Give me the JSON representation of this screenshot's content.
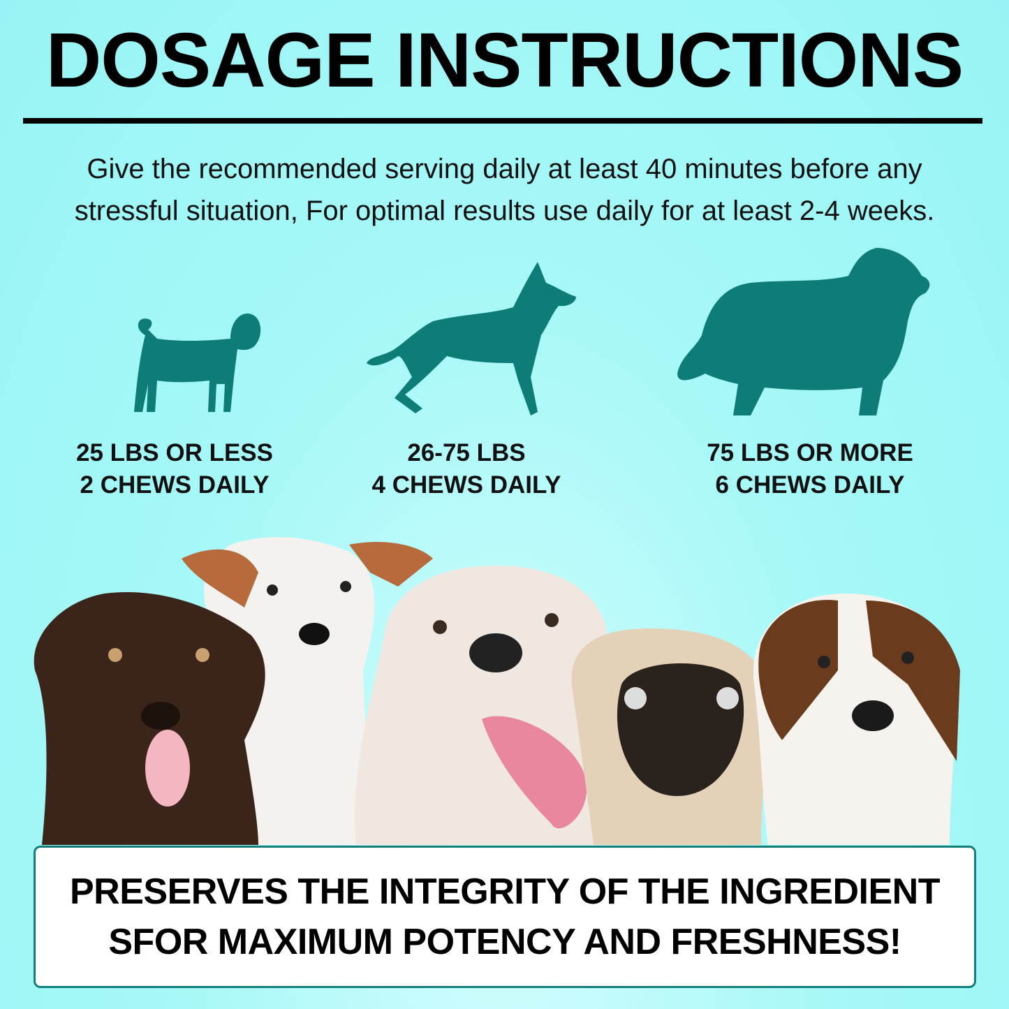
{
  "title": "DOSAGE INSTRUCTIONS",
  "intro": {
    "line1": "Give the recommended serving daily at least 40 minutes before any",
    "line2": "stressful situation, For optimal results use daily for at least 2-4 weeks."
  },
  "colors": {
    "background": "#9ef6f6",
    "accent": "#0f7d77",
    "text": "#000000"
  },
  "dosages": [
    {
      "icon": "pug-silhouette-icon",
      "weight": "25 LBS OR LESS",
      "amount": "2 CHEWS DAILY"
    },
    {
      "icon": "shepherd-silhouette-icon",
      "weight": "26-75 LBS",
      "amount": "4 CHEWS DAILY"
    },
    {
      "icon": "large-dog-silhouette-icon",
      "weight": "75 LBS OR MORE",
      "amount": "6 CHEWS DAILY"
    }
  ],
  "banner": {
    "line1": "PRESERVES THE INTEGRITY OF THE INGREDIENT",
    "line2": "SFOR MAXIMUM POTENCY AND FRESHNESS!"
  }
}
